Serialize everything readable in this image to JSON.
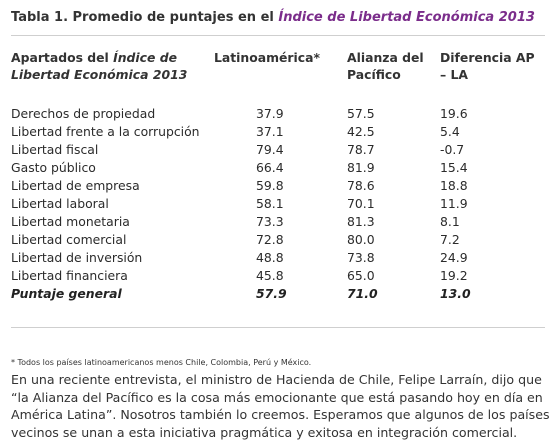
{
  "caption": {
    "prefix": "Tabla 1. Promedio de puntajes en el ",
    "link": "Índice de Libertad Económica 2013"
  },
  "table": {
    "headers": {
      "col0_prefix": "Apartados del ",
      "col0_italic": "Índice de Libertad Económica 2013",
      "col1": "Latinoamérica*",
      "col2": "Alianza del Pacífico",
      "col3": "Diferencia AP – LA"
    },
    "rows": [
      {
        "label": "Derechos de propiedad",
        "la": "37.9",
        "ap": "57.5",
        "diff": "19.6"
      },
      {
        "label": "Libertad frente a la corrupción",
        "la": "37.1",
        "ap": "42.5",
        "diff": "5.4"
      },
      {
        "label": "Libertad fiscal",
        "la": "79.4",
        "ap": "78.7",
        "diff": "-0.7"
      },
      {
        "label": "Gasto público",
        "la": "66.4",
        "ap": "81.9",
        "diff": "15.4"
      },
      {
        "label": "Libertad de empresa",
        "la": "59.8",
        "ap": "78.6",
        "diff": "18.8"
      },
      {
        "label": "Libertad laboral",
        "la": "58.1",
        "ap": "70.1",
        "diff": "11.9"
      },
      {
        "label": "Libertad monetaria",
        "la": "73.3",
        "ap": "81.3",
        "diff": "8.1"
      },
      {
        "label": "Libertad comercial",
        "la": "72.8",
        "ap": "80.0",
        "diff": "7.2"
      },
      {
        "label": "Libertad de inversión",
        "la": "48.8",
        "ap": "73.8",
        "diff": "24.9"
      },
      {
        "label": "Libertad financiera",
        "la": "45.8",
        "ap": "65.0",
        "diff": "19.2"
      }
    ],
    "total": {
      "label": "Puntaje general",
      "la": "57.9",
      "ap": "71.0",
      "diff": "13.0"
    }
  },
  "footnote": "* Todos los países latinoamericanos menos Chile, Colombia, Perú y México.",
  "body_text": "En una reciente entrevista, el ministro de Hacienda de Chile, Felipe Larraín, dijo que “la Alianza del Pacífico es la cosa más emocionante que está pasando hoy en día en América Latina”. Nosotros también lo creemos. Esperamos que algunos de los países vecinos se unan a esta iniciativa pragmática y exitosa en integración comercial.",
  "colors": {
    "link": "#7b2d8b",
    "text": "#333333",
    "rule": "#cfcfcf"
  }
}
